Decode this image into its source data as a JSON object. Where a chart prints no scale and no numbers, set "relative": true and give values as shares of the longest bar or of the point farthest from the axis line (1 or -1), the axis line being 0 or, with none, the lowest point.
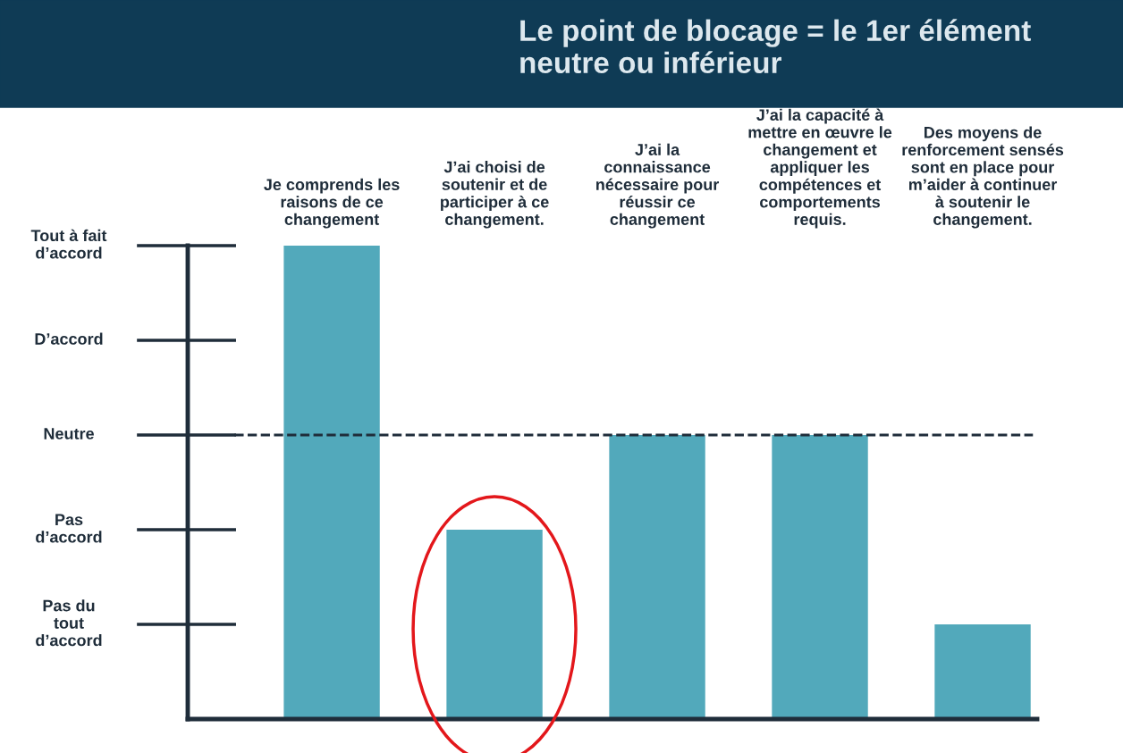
{
  "chart_data": {
    "type": "bar",
    "title": "Le point de blocage = le 1er élément neutre ou inférieur",
    "categories": [
      "Je comprends les raisons de ce changement",
      "J’ai choisi de soutenir et de participer à ce changement.",
      "J’ai la connaissance nécessaire pour réussir ce changement",
      "J’ai la capacité à mettre en œuvre le changement et appliquer les compétences et comportements requis.",
      "Des moyens de renforcement sensés sont en place pour m’aider à continuer à soutenir le changement."
    ],
    "values": [
      1,
      0.4,
      0.6,
      0.6,
      0.2
    ],
    "relative": true,
    "color": "#52a9bb",
    "annotations": [
      "Pas du\ntout\nd’accord",
      "Pas\nd’accord",
      "Neutre",
      "D’accord",
      "Tout à fait\nd’accord"
    ],
    "ref_lines": [
      {
        "axis": "y",
        "value": 0.6,
        "color": "#1f2d3a",
        "line_style": "dashed"
      }
    ],
    "grid": false
  }
}
